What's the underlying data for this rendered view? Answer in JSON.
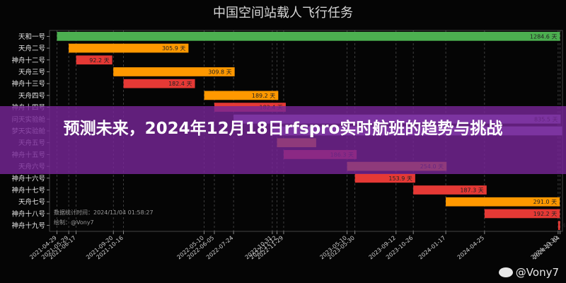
{
  "chart_data": {
    "type": "gantt",
    "title": "中国空间站载人飞行任务",
    "tasks": [
      {
        "name": "天和一号",
        "start": "2021-04-29",
        "duration": 1284.6,
        "label": "1284.6 天",
        "color": "#4caf50"
      },
      {
        "name": "天舟二号",
        "start": "2021-05-29",
        "duration": 305.9,
        "label": "305.9 天",
        "color": "#ff9800"
      },
      {
        "name": "神舟十二号",
        "start": "2021-06-17",
        "duration": 92.2,
        "label": "92.2 天",
        "color": "#e53935"
      },
      {
        "name": "天舟三号",
        "start": "2021-09-20",
        "duration": 309.8,
        "label": "309.8 天",
        "color": "#ff9800"
      },
      {
        "name": "神舟十三号",
        "start": "2021-10-16",
        "duration": 182.4,
        "label": "182.4 天",
        "color": "#e53935"
      },
      {
        "name": "天舟四号",
        "start": "2022-05-10",
        "duration": 189.2,
        "label": "189.2 天",
        "color": "#ff9800"
      },
      {
        "name": "神舟十四号",
        "start": "2022-06-05",
        "duration": 182.4,
        "label": "182.4 天",
        "color": "#e53935"
      },
      {
        "name": "问天实验舱",
        "start": "2022-07-24",
        "duration": 835.5,
        "label": "835.5 天",
        "color": "#9575cd"
      },
      {
        "name": "梦天实验舱",
        "start": "2022-10-31",
        "duration": 740.0,
        "label": "",
        "color": "#9575cd"
      },
      {
        "name": "天舟五号",
        "start": "2022-11-12",
        "duration": 100.0,
        "label": "",
        "color": "#ff9800"
      },
      {
        "name": "神舟十五号",
        "start": "2022-11-29",
        "duration": 186.3,
        "label": "186.3 天",
        "color": "#e53935"
      },
      {
        "name": "天舟六号",
        "start": "2023-05-10",
        "duration": 254.0,
        "label": "254.0 天",
        "color": "#ff9800"
      },
      {
        "name": "神舟十六号",
        "start": "2023-05-30",
        "duration": 153.9,
        "label": "153.9 天",
        "color": "#e53935"
      },
      {
        "name": "神舟十七号",
        "start": "2023-10-26",
        "duration": 187.3,
        "label": "187.3 天",
        "color": "#e53935"
      },
      {
        "name": "天舟七号",
        "start": "2024-01-17",
        "duration": 291.0,
        "label": "291.0 天",
        "color": "#ff9800"
      },
      {
        "name": "神舟十八号",
        "start": "2024-04-25",
        "duration": 192.2,
        "label": "192.2 天",
        "color": "#e53935"
      },
      {
        "name": "神舟十九号",
        "start": "2024-10-30",
        "duration": 4.9,
        "label": "4.9 天",
        "color": "#e53935"
      }
    ],
    "x_ticks": [
      "2021-04-29",
      "2021-05-29",
      "2021-06-17",
      "2021-09-20",
      "2021-10-16",
      "2022-05-10",
      "2022-06-05",
      "2022-07-24",
      "2022-10-31",
      "2022-11-12",
      "2022-11-29",
      "2023-05-10",
      "2023-05-30",
      "2023-09-12",
      "2023-10-26",
      "2024-01-17",
      "2024-04-25",
      "2024-10-30",
      "2024-11-04"
    ],
    "x_range": [
      "2021-04-10",
      "2024-11-10"
    ],
    "grid": "vertical dashed"
  },
  "watermark": {
    "stats_time": "数据统计时间：2024/11/04 01:58:27",
    "author": "绘制：@Vony7",
    "footer": "@Vony7"
  },
  "banner": {
    "title": "预测未来，2024年12月18日rfspro实时航班的趋势与挑战"
  }
}
